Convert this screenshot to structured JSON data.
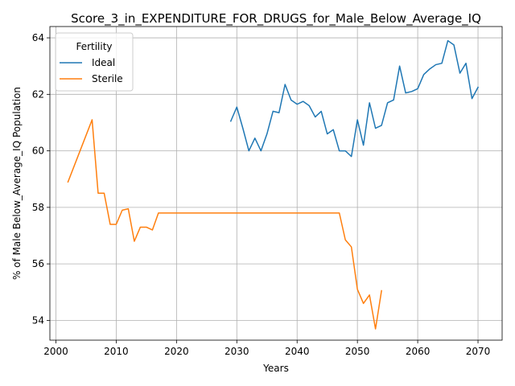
{
  "chart_data": {
    "type": "line",
    "title": "Score_3_in_EXPENDITURE_FOR_DRUGS_for_Male_Below_Average_IQ",
    "xlabel": "Years",
    "ylabel": "% of Male Below_Average_IQ Population",
    "xlim": [
      1999,
      2074
    ],
    "ylim": [
      53.3,
      64.4
    ],
    "xticks": [
      2000,
      2010,
      2020,
      2030,
      2040,
      2050,
      2060,
      2070
    ],
    "yticks": [
      54,
      56,
      58,
      60,
      62,
      64
    ],
    "grid": true,
    "legend": {
      "title": "Fertility",
      "placement": "top-left"
    },
    "series": [
      {
        "name": "Ideal",
        "color": "#1f77b4",
        "x": [
          2029,
          2030,
          2031,
          2032,
          2033,
          2034,
          2035,
          2036,
          2037,
          2038,
          2039,
          2040,
          2041,
          2042,
          2043,
          2044,
          2045,
          2046,
          2047,
          2048,
          2049,
          2050,
          2051,
          2052,
          2053,
          2054,
          2055,
          2056,
          2057,
          2058,
          2059,
          2060,
          2061,
          2062,
          2063,
          2064,
          2065,
          2066,
          2067,
          2068,
          2069,
          2070
        ],
        "y": [
          61.05,
          61.55,
          60.8,
          60.0,
          60.45,
          60.0,
          60.6,
          61.4,
          61.35,
          62.35,
          61.8,
          61.65,
          61.75,
          61.6,
          61.2,
          61.4,
          60.6,
          60.75,
          60.0,
          60.0,
          59.8,
          61.1,
          60.2,
          61.7,
          60.8,
          60.9,
          61.7,
          61.8,
          63.0,
          62.05,
          62.1,
          62.2,
          62.7,
          62.9,
          63.05,
          63.1,
          63.9,
          63.75,
          62.75,
          63.1,
          61.85,
          62.25
        ]
      },
      {
        "name": "Sterile",
        "color": "#ff7f0e",
        "x": [
          2002,
          2006,
          2007,
          2008,
          2009,
          2010,
          2011,
          2012,
          2013,
          2014,
          2015,
          2016,
          2017,
          2018,
          2019,
          2020,
          2021,
          2022,
          2023,
          2024,
          2025,
          2026,
          2027,
          2028,
          2029,
          2030,
          2031,
          2032,
          2033,
          2034,
          2035,
          2036,
          2037,
          2038,
          2039,
          2040,
          2041,
          2042,
          2043,
          2044,
          2045,
          2046,
          2047,
          2048,
          2049,
          2050,
          2051,
          2052,
          2053,
          2054
        ],
        "y": [
          58.9,
          61.1,
          58.5,
          58.5,
          57.4,
          57.4,
          57.9,
          57.95,
          56.8,
          57.3,
          57.3,
          57.2,
          57.8,
          57.8,
          57.8,
          57.8,
          57.8,
          57.8,
          57.8,
          57.8,
          57.8,
          57.8,
          57.8,
          57.8,
          57.8,
          57.8,
          57.8,
          57.8,
          57.8,
          57.8,
          57.8,
          57.8,
          57.8,
          57.8,
          57.8,
          57.8,
          57.8,
          57.8,
          57.8,
          57.8,
          57.8,
          57.8,
          57.8,
          56.85,
          56.6,
          55.1,
          54.6,
          54.9,
          53.7,
          55.05
        ]
      }
    ]
  }
}
